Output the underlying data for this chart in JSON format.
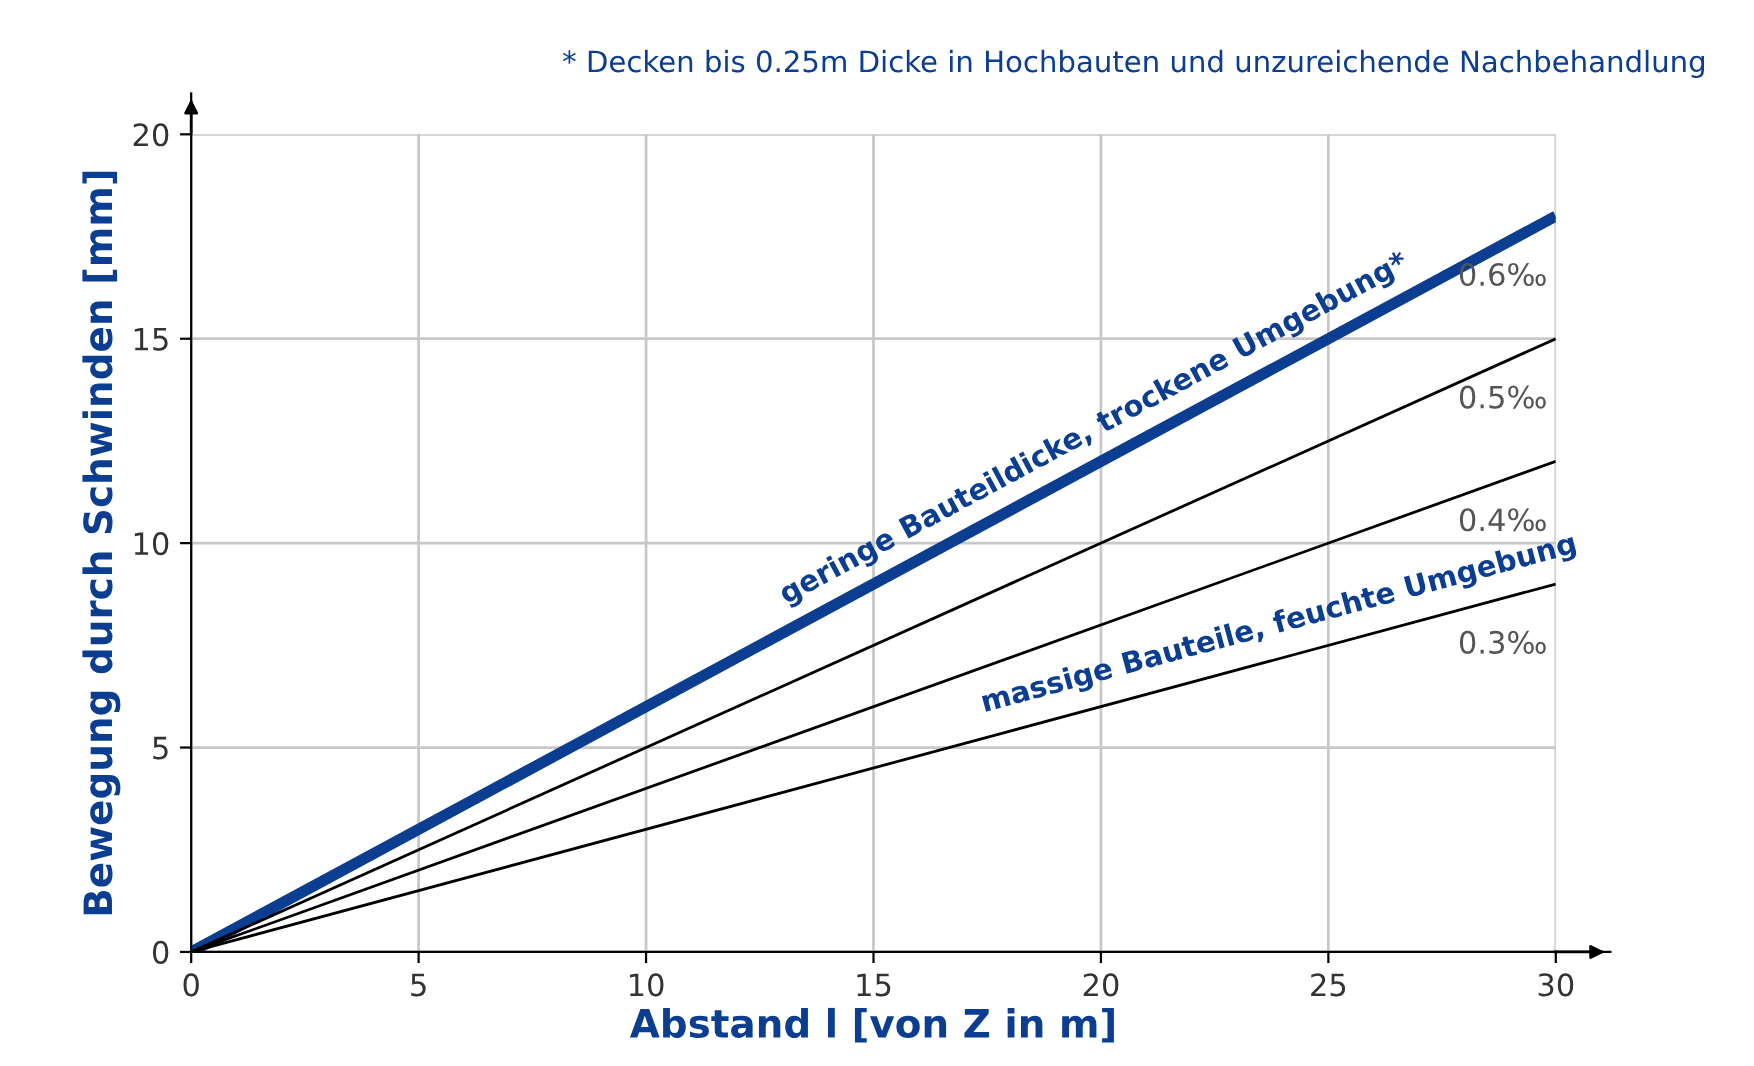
{
  "chart_data": {
    "type": "line",
    "xlabel": "Abstand l [von Z in m]",
    "ylabel": "Bewegung durch Schwinden [mm]",
    "x": [
      0,
      30
    ],
    "xlim": [
      0,
      30
    ],
    "ylim": [
      0,
      20
    ],
    "xticks": [
      0,
      5,
      10,
      15,
      20,
      25,
      30
    ],
    "yticks": [
      0,
      5,
      10,
      15,
      20
    ],
    "grid": true,
    "legend": false,
    "marker": "none",
    "line_style": "solid",
    "series": [
      {
        "name": "0.6‰",
        "color": "#0b3d91",
        "values": [
          0,
          18
        ]
      },
      {
        "name": "0.5‰",
        "color": "#000000",
        "values": [
          0,
          15
        ]
      },
      {
        "name": "0.4‰",
        "color": "#000000",
        "values": [
          0,
          12
        ]
      },
      {
        "name": "0.3‰",
        "color": "#000000",
        "values": [
          0,
          9
        ]
      }
    ],
    "annotations": [
      "* Decken bis 0.25m Dicke in Hochbauten und unzureichende Nachbehandlung",
      {
        "text": "geringe Bauteildicke, trockene Umgebung*",
        "x": 20,
        "y": 12
      },
      {
        "text": "massige Bauteile, feuchte Umgebung",
        "x": 24,
        "y": 7.2
      }
    ]
  }
}
